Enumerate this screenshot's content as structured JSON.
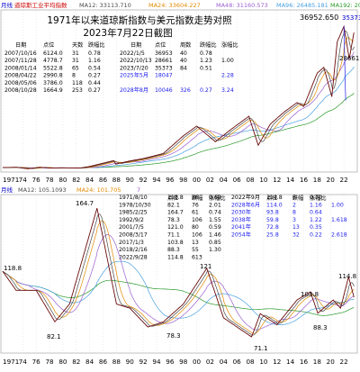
{
  "colors": {
    "background": "#ffffff",
    "price": "#6a0a0a",
    "ma12": "#4a4a4a",
    "ma24": "#e08a00",
    "ma48": "#9a5fd0",
    "ma96": "#48a0e0",
    "ma192": "#2a9a2a",
    "header_blue": "#0000cc",
    "label_blue": "#2222ee",
    "grid": "#cfcfcf"
  },
  "top_panel": {
    "header": {
      "period": "月线",
      "name": "道琼斯工业平均指数",
      "ma12": "MA12: 33113.710",
      "ma24": "MA24: 33604.227",
      "ma48": "MA48: 31160.573",
      "ma96": "MA96: 26485.181",
      "ma192": "MA192: 20190"
    },
    "title_line1": "1971年以来道琼斯指数与美元指数走势对照",
    "title_line2": "2023年7月22日截图",
    "table_headers": [
      "日期",
      "点位",
      "天数",
      "跌幅比",
      "日期",
      "点位",
      "周数",
      "跌幅比",
      "涨幅比"
    ],
    "table_rows": [
      {
        "date": "2007/10/16",
        "point": "6124.0",
        "days": "31",
        "ratio": "0.78",
        "date2": "2022/1/5",
        "point2": "36953",
        "weeks": "40",
        "down2": "0.78",
        "up2": "",
        "highlight": false
      },
      {
        "date": "2007/11/28",
        "point": "4778.7",
        "days": "31",
        "ratio": "1.16",
        "date2": "2022/10/13",
        "point2": "28661",
        "weeks": "40",
        "down2": "1.23",
        "up2": "1.00",
        "highlight": false
      },
      {
        "date": "2008/01/14",
        "point": "5522.8",
        "days": "65",
        "ratio": "0.54",
        "date2": "2023/7/20",
        "point2": "35373",
        "weeks": "84",
        "down2": "0.51",
        "up2": "",
        "highlight": false
      },
      {
        "date": "2008/04/22",
        "point": "2990.8",
        "days": "8",
        "ratio": "0.27",
        "date2": "2025年5月",
        "point2": "18047",
        "weeks": "",
        "down2": "",
        "up2": "2.28",
        "highlight": true
      },
      {
        "date": "2008/05/06",
        "point": "3786.0",
        "days": "118",
        "ratio": "0.44",
        "date2": "",
        "point2": "",
        "weeks": "",
        "down2": "",
        "up2": "",
        "highlight": false
      },
      {
        "date": "2008/10/28",
        "point": "1664.9",
        "days": "253",
        "ratio": "0.27",
        "date2": "2028年8月",
        "point2": "10046",
        "weeks": "326",
        "down2": "0.27",
        "up2": "3.24",
        "highlight": true
      }
    ],
    "annotations": {
      "high": "36952.650",
      "last": "35373",
      "low": "28661"
    },
    "x_ticks": [
      "1971",
      "74",
      "76",
      "78",
      "80",
      "82",
      "84",
      "86",
      "88",
      "90",
      "92",
      "94",
      "96",
      "98",
      "00",
      "02",
      "04",
      "06",
      "08",
      "10",
      "12",
      "14",
      "16",
      "18",
      "20",
      "22"
    ]
  },
  "bottom_panel": {
    "header": {
      "period": "月线",
      "ma12": "MA12: 105.1093",
      "ma24": "MA24: 101.705",
      "extra": "7"
    },
    "table_left": {
      "headers": [
        "",
        "点位",
        "跌幅",
        "涨幅比"
      ],
      "rows": [
        {
          "date": "1971/8/10",
          "point": "118.8",
          "drop": "86",
          "ratio": "0.69"
        },
        {
          "date": "1978/10/30",
          "point": "82.1",
          "drop": "76",
          "ratio": "2.01"
        },
        {
          "date": "1985/2/25",
          "point": "164.7",
          "drop": "61",
          "ratio": "0.74"
        },
        {
          "date": "1992/9/2",
          "point": "78.3",
          "drop": "106",
          "ratio": "1.55"
        },
        {
          "date": "2001/7/5",
          "point": "121.0",
          "drop": "80",
          "ratio": "0.59"
        },
        {
          "date": "2008/3/17",
          "point": "71.1",
          "drop": "106",
          "ratio": "1.46"
        },
        {
          "date": "2017/1/3",
          "point": "103.8",
          "drop": "13",
          "ratio": "0.85"
        },
        {
          "date": "2018/2/16",
          "point": "88.3",
          "drop": "55",
          "ratio": "1.30"
        },
        {
          "date": "2022/9/28",
          "point": "114.8",
          "drop": "613",
          "ratio": ""
        }
      ]
    },
    "table_right": {
      "headers": [
        "点位",
        "跌幅",
        "涨幅比"
      ],
      "rows": [
        {
          "date": "2022年9月",
          "point": "114.8",
          "drop": "6",
          "ratio": "0.70",
          "extra": "",
          "highlight": false
        },
        {
          "date": "2028年6月",
          "point": "114.0",
          "drop": "2",
          "ratio": "1.16",
          "extra": "1.00",
          "highlight": true
        },
        {
          "date": "2030年",
          "point": "93.8",
          "drop": "8",
          "ratio": "0.64",
          "extra": "",
          "highlight": true
        },
        {
          "date": "2038年",
          "point": "59.8",
          "drop": "3",
          "ratio": "1.22",
          "extra": "1.618",
          "highlight": true
        },
        {
          "date": "2041年",
          "point": "72.8",
          "drop": "13",
          "ratio": "0.35",
          "extra": "",
          "highlight": true
        },
        {
          "date": "2054年",
          "point": "25.8",
          "drop": "32",
          "ratio": "0.22",
          "extra": "2.618",
          "highlight": true
        }
      ]
    },
    "annotations": [
      "164.7",
      "118.8",
      "82.1",
      "121",
      "78.3",
      "71.1",
      "103.8",
      "88.3",
      "114.8"
    ],
    "x_ticks": [
      "1971",
      "74",
      "76",
      "78",
      "80",
      "82",
      "84",
      "86",
      "88",
      "90",
      "92",
      "94",
      "96",
      "98",
      "00",
      "02",
      "04",
      "06",
      "08",
      "10",
      "12",
      "14",
      "16",
      "18",
      "20",
      "22"
    ]
  },
  "chart_data": [
    {
      "type": "line",
      "name": "道琼斯工业平均指数",
      "x": [
        1971,
        1973,
        1974.8,
        1976.5,
        1978,
        1980,
        1982.6,
        1984,
        1987.6,
        1987.9,
        1990,
        1992,
        1995,
        1998,
        2000,
        2002.8,
        2005,
        2007.8,
        2009.2,
        2011,
        2013,
        2015,
        2016,
        2018,
        2019,
        2020.2,
        2021,
        2022.0,
        2022.8,
        2023.5
      ],
      "y": [
        900,
        1000,
        600,
        1000,
        800,
        850,
        800,
        1200,
        2700,
        1800,
        2600,
        3200,
        4500,
        9000,
        11500,
        7500,
        10500,
        14000,
        6600,
        12000,
        15000,
        17500,
        16500,
        25000,
        26500,
        19000,
        33000,
        36953,
        28661,
        35373
      ],
      "ylim": [
        0,
        40000
      ]
    },
    {
      "type": "line",
      "name": "",
      "x": [
        1971,
        1973,
        1976,
        1978.8,
        1981,
        1985.1,
        1988,
        1990,
        1992.7,
        1995,
        1998,
        2001.5,
        2004,
        2008.2,
        2009.5,
        2012,
        2015,
        2017.0,
        2018.1,
        2020.4,
        2021.5,
        2022.7,
        2023.5
      ],
      "y": [
        118.8,
        105,
        105,
        82.1,
        95,
        164.7,
        95,
        92,
        78.3,
        82,
        95,
        121,
        85,
        71.1,
        88,
        80,
        98,
        103.8,
        88.3,
        98,
        92,
        114.8,
        100
      ],
      "ylim": [
        60,
        170
      ]
    }
  ]
}
